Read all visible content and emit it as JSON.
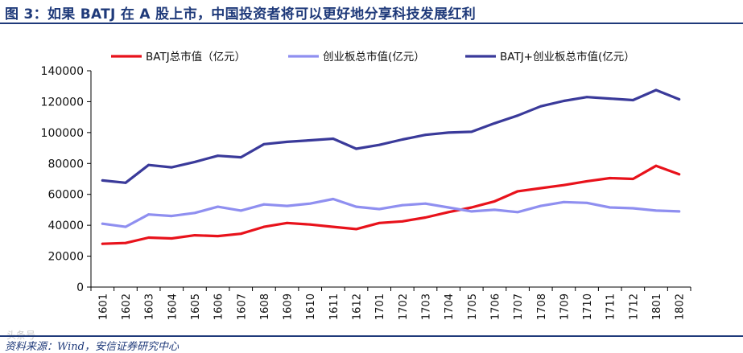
{
  "figure_title": "图 3：如果 BATJ 在 A 股上市，中国投资者将可以更好地分享科技发展红利",
  "source": "资料来源：Wind，安信证券研究中心",
  "watermark": "头条号",
  "colors": {
    "title": "#1f3a7a",
    "batj": "#e8121b",
    "chinext": "#8f8ff0",
    "combined": "#3a3a9a"
  },
  "chart_data": {
    "type": "line",
    "title": "",
    "xlabel": "",
    "ylabel": "",
    "ylim": [
      0,
      140000
    ],
    "yticks": [
      "0",
      "20000",
      "40000",
      "60000",
      "80000",
      "100000",
      "120000",
      "140000"
    ],
    "grid": false,
    "legend_position": "top",
    "categories": [
      "1601",
      "1602",
      "1603",
      "1604",
      "1605",
      "1606",
      "1607",
      "1608",
      "1609",
      "1610",
      "1611",
      "1612",
      "1701",
      "1702",
      "1703",
      "1704",
      "1705",
      "1706",
      "1707",
      "1708",
      "1709",
      "1710",
      "1711",
      "1712",
      "1801",
      "1802"
    ],
    "series": [
      {
        "name": "BATJ总市值（亿元）",
        "color": "#e8121b",
        "values": [
          28000,
          28500,
          32000,
          31500,
          33500,
          33000,
          34500,
          39000,
          41500,
          40500,
          39000,
          37500,
          41500,
          42500,
          45000,
          48500,
          51500,
          55500,
          62000,
          64000,
          66000,
          68500,
          70500,
          70000,
          78500,
          73000
        ]
      },
      {
        "name": "创业板总市值(亿元）",
        "color": "#8f8ff0",
        "values": [
          41000,
          39000,
          47000,
          46000,
          48000,
          52000,
          49500,
          53500,
          52500,
          54000,
          57000,
          52000,
          50500,
          53000,
          54000,
          51500,
          49000,
          50000,
          48500,
          52500,
          55000,
          54500,
          51500,
          51000,
          49500,
          49000
        ]
      },
      {
        "name": "BATJ+创业板总市值(亿元）",
        "color": "#3a3a9a",
        "values": [
          69000,
          67500,
          79000,
          77500,
          81000,
          85000,
          84000,
          92500,
          94000,
          95000,
          96000,
          89500,
          92000,
          95500,
          98500,
          100000,
          100500,
          106000,
          111000,
          117000,
          120500,
          123000,
          122000,
          121000,
          127500,
          121500
        ]
      }
    ]
  }
}
